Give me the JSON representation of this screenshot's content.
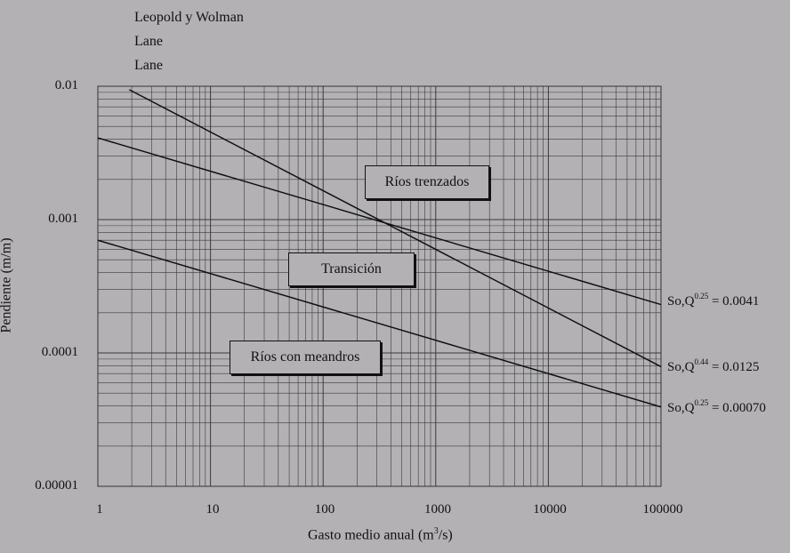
{
  "chart_data": {
    "type": "line",
    "xscale": "log",
    "yscale": "log",
    "xlim": [
      1,
      100000
    ],
    "ylim": [
      1e-05,
      0.01
    ],
    "xlabel_prefix": "Gasto medio anual (m",
    "xlabel_sup": "3",
    "xlabel_suffix": "/s)",
    "ylabel": "Pendiente (m/m)",
    "x_ticks": [
      {
        "value": 1,
        "label": "1"
      },
      {
        "value": 10,
        "label": "10"
      },
      {
        "value": 100,
        "label": "100"
      },
      {
        "value": 1000,
        "label": "1000"
      },
      {
        "value": 10000,
        "label": "10000"
      },
      {
        "value": 100000,
        "label": "100000"
      }
    ],
    "y_ticks": [
      {
        "value": 0.01,
        "label": "0.01"
      },
      {
        "value": 0.001,
        "label": "0.001"
      },
      {
        "value": 0.0001,
        "label": "0.0001"
      },
      {
        "value": 1e-05,
        "label": "0.00001"
      }
    ],
    "grid": true,
    "legend": [
      "Leopold y Wolman",
      "Lane",
      "Lane"
    ],
    "series": [
      {
        "equation_prefix": "So,Q",
        "exponent": "0.25",
        "constant_text": " = 0.0041",
        "coefficient": 0.0041,
        "power": 0.25,
        "x_start": 1
      },
      {
        "equation_prefix": "So,Q",
        "exponent": "0.44",
        "constant_text": " = 0.0125",
        "coefficient": 0.0125,
        "power": 0.44,
        "x_start": 1.9
      },
      {
        "equation_prefix": "So,Q",
        "exponent": "0.25",
        "constant_text": " = 0.00070",
        "coefficient": 0.0007,
        "power": 0.25,
        "x_start": 1
      }
    ],
    "regions": [
      {
        "label": "Ríos trenzados"
      },
      {
        "label": "Transición"
      },
      {
        "label": "Ríos con meandros"
      }
    ]
  }
}
